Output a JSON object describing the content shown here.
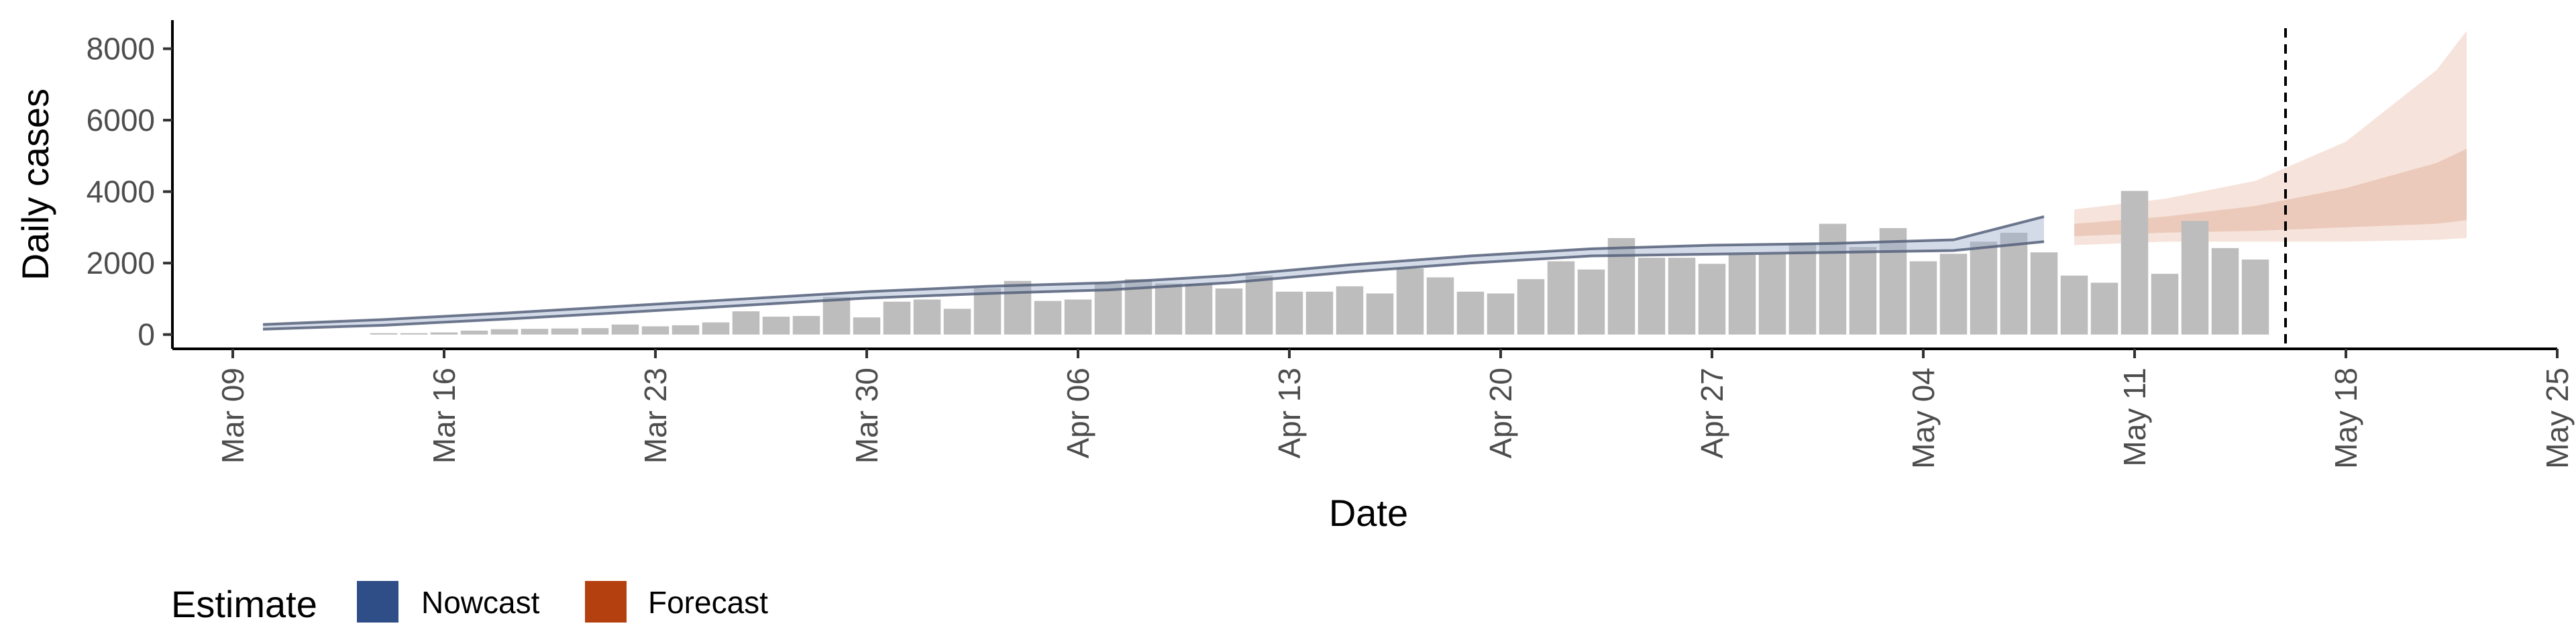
{
  "chart_data": {
    "type": "bar",
    "xlabel": "Date",
    "ylabel": "Daily cases",
    "ylim": [
      -400,
      8800
    ],
    "y_ticks": [
      0,
      2000,
      4000,
      6000,
      8000
    ],
    "y_tick_labels": [
      "0",
      "2000",
      "4000",
      "6000",
      "8000"
    ],
    "x_range": [
      "2020-03-07",
      "2020-05-25"
    ],
    "x_ticks": [
      "2020-03-09",
      "2020-03-16",
      "2020-03-23",
      "2020-03-30",
      "2020-04-06",
      "2020-04-13",
      "2020-04-20",
      "2020-04-27",
      "2020-05-04",
      "2020-05-11",
      "2020-05-18",
      "2020-05-25"
    ],
    "x_tick_labels": [
      "Mar 09",
      "Mar 16",
      "Mar 23",
      "Mar 30",
      "Apr 06",
      "Apr 13",
      "Apr 20",
      "Apr 27",
      "May 04",
      "May 11",
      "May 18",
      "May 25"
    ],
    "grid": false,
    "reference_line_date": "2020-05-16",
    "bars": {
      "color": "#bdbdbd",
      "dates": [
        "2020-03-14",
        "2020-03-15",
        "2020-03-16",
        "2020-03-17",
        "2020-03-18",
        "2020-03-19",
        "2020-03-20",
        "2020-03-21",
        "2020-03-22",
        "2020-03-23",
        "2020-03-24",
        "2020-03-25",
        "2020-03-26",
        "2020-03-27",
        "2020-03-28",
        "2020-03-29",
        "2020-03-30",
        "2020-03-31",
        "2020-04-01",
        "2020-04-02",
        "2020-04-03",
        "2020-04-04",
        "2020-04-05",
        "2020-04-06",
        "2020-04-07",
        "2020-04-08",
        "2020-04-09",
        "2020-04-10",
        "2020-04-11",
        "2020-04-12",
        "2020-04-13",
        "2020-04-14",
        "2020-04-15",
        "2020-04-16",
        "2020-04-17",
        "2020-04-18",
        "2020-04-19",
        "2020-04-20",
        "2020-04-21",
        "2020-04-22",
        "2020-04-23",
        "2020-04-24",
        "2020-04-25",
        "2020-04-26",
        "2020-04-27",
        "2020-04-28",
        "2020-04-29",
        "2020-04-30",
        "2020-05-01",
        "2020-05-02",
        "2020-05-03",
        "2020-05-04",
        "2020-05-05",
        "2020-05-06",
        "2020-05-07",
        "2020-05-08",
        "2020-05-09",
        "2020-05-10",
        "2020-05-11",
        "2020-05-12",
        "2020-05-13",
        "2020-05-14",
        "2020-05-15",
        "2020-05-16"
      ],
      "values": [
        20,
        30,
        60,
        110,
        150,
        160,
        170,
        180,
        280,
        230,
        260,
        340,
        650,
        500,
        520,
        1050,
        480,
        920,
        980,
        720,
        1300,
        1500,
        940,
        980,
        1420,
        1550,
        1430,
        1420,
        1290,
        1650,
        1200,
        1200,
        1350,
        1150,
        1850,
        1600,
        1200,
        1150,
        1550,
        2050,
        1820,
        2700,
        2150,
        2150,
        1980,
        2230,
        2250,
        2550,
        3100,
        2450,
        2980,
        2050,
        2260,
        2600,
        2850,
        2300,
        1650,
        1450,
        4020,
        1700,
        3180,
        2420,
        2100,
        0
      ]
    },
    "series": [
      {
        "name": "Nowcast",
        "color": "#3a5a8c",
        "x": [
          "2020-03-10",
          "2020-03-14",
          "2020-03-18",
          "2020-03-22",
          "2020-03-26",
          "2020-03-30",
          "2020-04-03",
          "2020-04-07",
          "2020-04-11",
          "2020-04-15",
          "2020-04-19",
          "2020-04-23",
          "2020-04-27",
          "2020-05-01",
          "2020-05-05",
          "2020-05-08"
        ],
        "upper": [
          280,
          420,
          600,
          800,
          1000,
          1200,
          1350,
          1450,
          1650,
          1950,
          2200,
          2400,
          2500,
          2550,
          2650,
          3300
        ],
        "lower": [
          150,
          260,
          430,
          620,
          820,
          1020,
          1150,
          1250,
          1450,
          1750,
          2000,
          2200,
          2250,
          2300,
          2350,
          2600
        ]
      },
      {
        "name": "Forecast",
        "color": "#b5400f",
        "x": [
          "2020-05-09",
          "2020-05-12",
          "2020-05-15",
          "2020-05-18",
          "2020-05-21",
          "2020-05-22"
        ],
        "upper_90": [
          3500,
          3800,
          4300,
          5400,
          7400,
          8500
        ],
        "lower_90": [
          2500,
          2600,
          2600,
          2600,
          2650,
          2700
        ],
        "upper_50": [
          3100,
          3300,
          3600,
          4100,
          4800,
          5200
        ],
        "lower_50": [
          2750,
          2850,
          2900,
          3000,
          3100,
          3200
        ]
      }
    ],
    "legend": {
      "title": "Estimate",
      "placement": "bottom-left",
      "items": [
        {
          "label": "Nowcast",
          "color": "#2f4d86"
        },
        {
          "label": "Forecast",
          "color": "#b5400f"
        }
      ]
    }
  }
}
